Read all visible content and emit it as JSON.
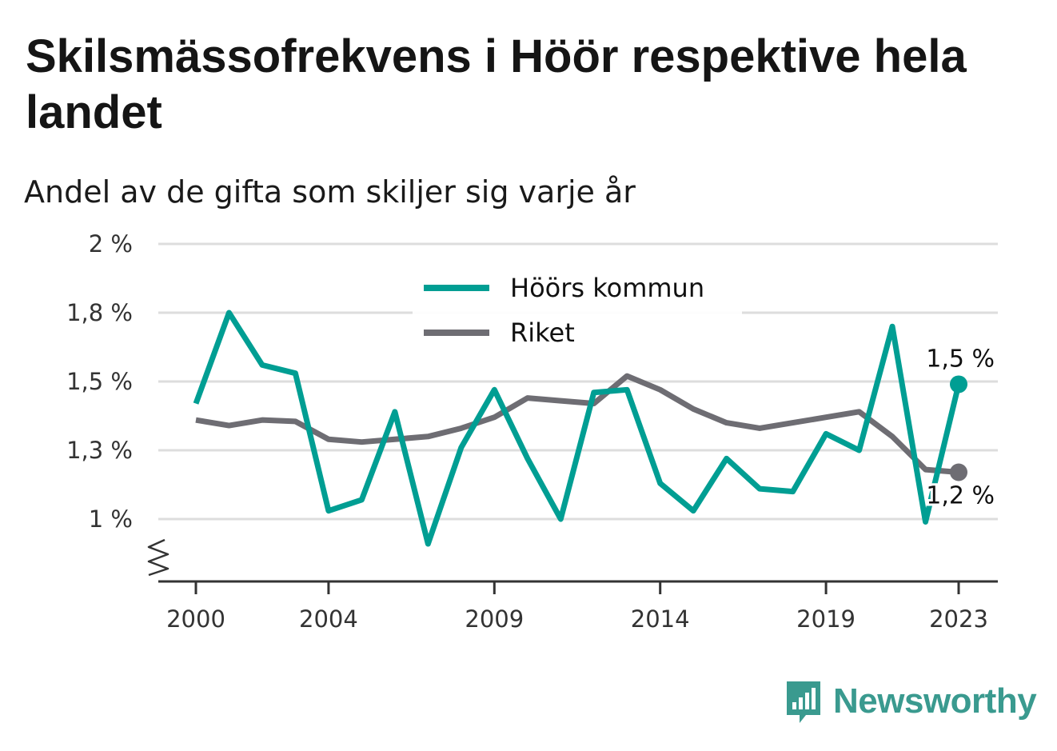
{
  "title": "Skilsmässofrekvens i Höör respektive hela landet",
  "subtitle": "Andel av de gifta som skiljer sig varje år",
  "brand": {
    "name": "Newsworthy",
    "icon": "newsworthy-logo-icon",
    "color": "#3a9a8f"
  },
  "colors": {
    "hoor": "#009e93",
    "riket": "#6e6d73",
    "grid": "#dddddd",
    "axis": "#333333"
  },
  "chart_data": {
    "type": "line",
    "title": "Skilsmässofrekvens i Höör respektive hela landet",
    "subtitle": "Andel av de gifta som skiljer sig varje år",
    "xlabel": "",
    "ylabel": "",
    "x": [
      2000,
      2001,
      2002,
      2003,
      2004,
      2005,
      2006,
      2007,
      2008,
      2009,
      2010,
      2011,
      2012,
      2013,
      2014,
      2015,
      2016,
      2017,
      2018,
      2019,
      2020,
      2021,
      2022,
      2023
    ],
    "x_ticks": [
      2000,
      2004,
      2009,
      2014,
      2019,
      2023
    ],
    "x_tick_labels": [
      "2000",
      "2004",
      "2009",
      "2014",
      "2019",
      "2023"
    ],
    "y_ticks": [
      1.0,
      1.25,
      1.5,
      1.75,
      2.0
    ],
    "y_tick_labels": [
      "1 %",
      "1,3 %",
      "1,5 %",
      "1,8 %",
      "2 %"
    ],
    "ylim": [
      0.78,
      2.0
    ],
    "y_axis_break": true,
    "grid": true,
    "legend_position": "top-center",
    "series": [
      {
        "name": "Höörs kommun",
        "color": "#009e93",
        "values": [
          1.42,
          1.75,
          1.56,
          1.53,
          1.03,
          1.07,
          1.39,
          0.91,
          1.26,
          1.47,
          1.22,
          1.0,
          1.46,
          1.47,
          1.13,
          1.03,
          1.22,
          1.11,
          1.1,
          1.31,
          1.25,
          1.7,
          0.99,
          1.49
        ],
        "end_label": "1,5 %"
      },
      {
        "name": "Riket",
        "color": "#6e6d73",
        "values": [
          1.36,
          1.34,
          1.36,
          1.355,
          1.29,
          1.28,
          1.29,
          1.3,
          1.33,
          1.37,
          1.44,
          1.43,
          1.42,
          1.52,
          1.47,
          1.4,
          1.35,
          1.33,
          1.35,
          1.37,
          1.39,
          1.3,
          1.18,
          1.17
        ],
        "end_label": "1,2 %"
      }
    ]
  }
}
